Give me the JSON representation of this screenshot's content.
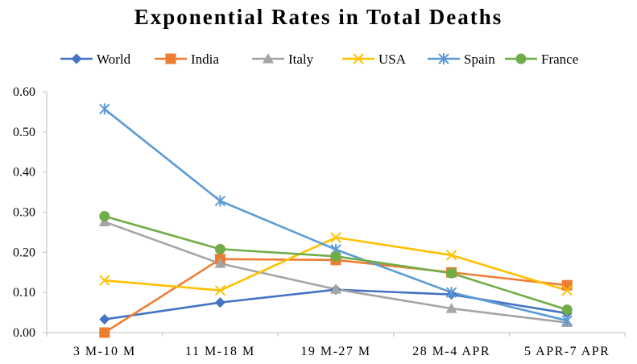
{
  "chart_data": {
    "type": "line",
    "title": "Exponential Rates in Total Deaths",
    "xlabel": "",
    "ylabel": "",
    "categories": [
      "3 M-10 M",
      "11 M-18 M",
      "19 M-27 M",
      "28 M-4 APR",
      "5 APR-7 APR"
    ],
    "ylim": [
      0,
      0.6
    ],
    "yticks": [
      "0.00",
      "0.10",
      "0.20",
      "0.30",
      "0.40",
      "0.50",
      "0.60"
    ],
    "grid": false,
    "legend_position": "top",
    "series": [
      {
        "name": "World",
        "color": "#4472c4",
        "marker": "diamond",
        "values": [
          0.033,
          0.075,
          0.107,
          0.095,
          0.048
        ]
      },
      {
        "name": "India",
        "color": "#ed7d31",
        "marker": "square",
        "values": [
          0.0,
          0.183,
          0.181,
          0.15,
          0.118
        ]
      },
      {
        "name": "Italy",
        "color": "#a5a5a5",
        "marker": "triangle",
        "values": [
          0.276,
          0.172,
          0.108,
          0.06,
          0.025
        ]
      },
      {
        "name": "USA",
        "color": "#ffc000",
        "marker": "x",
        "values": [
          0.13,
          0.105,
          0.237,
          0.193,
          0.105
        ]
      },
      {
        "name": "Spain",
        "color": "#5b9bd5",
        "marker": "star",
        "values": [
          0.557,
          0.328,
          0.207,
          0.1,
          0.03
        ]
      },
      {
        "name": "France",
        "color": "#70ad47",
        "marker": "circle",
        "values": [
          0.29,
          0.208,
          0.19,
          0.148,
          0.057
        ]
      }
    ]
  }
}
